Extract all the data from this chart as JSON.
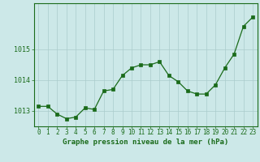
{
  "x": [
    0,
    1,
    2,
    3,
    4,
    5,
    6,
    7,
    8,
    9,
    10,
    11,
    12,
    13,
    14,
    15,
    16,
    17,
    18,
    19,
    20,
    21,
    22,
    23
  ],
  "y": [
    1013.15,
    1013.15,
    1012.9,
    1012.75,
    1012.8,
    1013.1,
    1013.05,
    1013.65,
    1013.7,
    1014.15,
    1014.4,
    1014.5,
    1014.5,
    1014.6,
    1014.15,
    1013.95,
    1013.65,
    1013.55,
    1013.55,
    1013.85,
    1014.4,
    1014.85,
    1015.75,
    1016.05
  ],
  "ylim_min": 1012.5,
  "ylim_max": 1016.5,
  "yticks": [
    1013,
    1014,
    1015
  ],
  "xlabel": "Graphe pression niveau de la mer (hPa)",
  "bg_color": "#cce8e8",
  "line_color": "#1a6b1a",
  "marker_color": "#1a6b1a",
  "grid_color": "#aacccc",
  "axis_label_color": "#1a6b1a",
  "tick_color": "#1a6b1a",
  "tick_fontsize": 5.5,
  "ytick_fontsize": 6.0,
  "xlabel_fontsize": 6.5
}
